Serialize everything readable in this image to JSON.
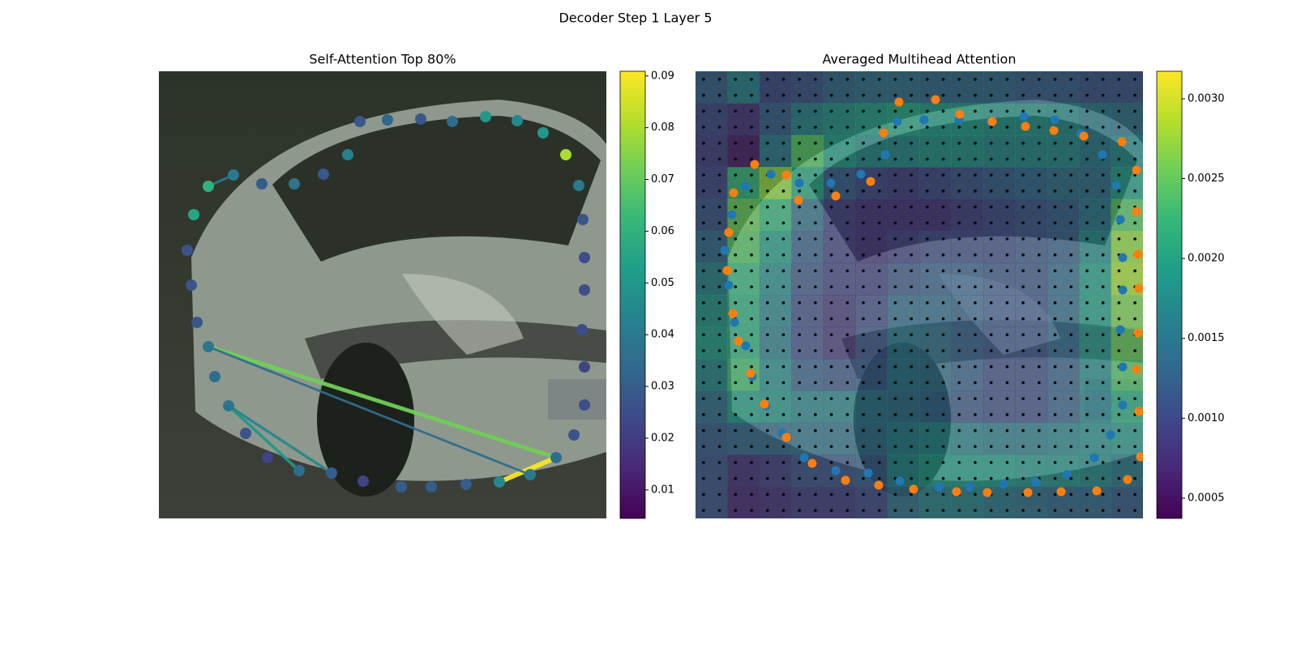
{
  "title": "Decoder Step 1 Layer 5",
  "chart_data": [
    {
      "type": "scatter",
      "title": "Self-Attention Top 80%",
      "colormap": "viridis",
      "xlim": [
        0,
        552
      ],
      "ylim": [
        552,
        0
      ],
      "x": [
        61,
        47,
        40,
        35,
        43,
        61,
        92,
        127,
        167,
        203,
        233,
        248,
        282,
        323,
        362,
        403,
        442,
        474,
        502,
        518,
        523,
        525,
        525,
        522,
        525,
        525,
        512,
        490,
        458,
        420,
        379,
        336,
        299,
        252,
        213,
        173,
        134,
        107,
        86,
        69
      ],
      "y": [
        212,
        242,
        288,
        331,
        375,
        410,
        424,
        413,
        413,
        425,
        449,
        490,
        492,
        493,
        490,
        496,
        491,
        476,
        449,
        411,
        369,
        322,
        282,
        233,
        187,
        140,
        103,
        75,
        54,
        45,
        42,
        39,
        39,
        46,
        56,
        59,
        75,
        105,
        139,
        175
      ],
      "values": [
        0.038,
        0.028,
        0.027,
        0.027,
        0.055,
        0.06,
        0.04,
        0.03,
        0.038,
        0.028,
        0.042,
        0.028,
        0.033,
        0.028,
        0.035,
        0.05,
        0.045,
        0.05,
        0.08,
        0.04,
        0.027,
        0.025,
        0.025,
        0.025,
        0.022,
        0.025,
        0.027,
        0.035,
        0.04,
        0.045,
        0.03,
        0.03,
        0.03,
        0.022,
        0.03,
        0.035,
        0.022,
        0.027,
        0.038,
        0.035
      ],
      "links": {
        "source": [
          29,
          0,
          38,
          38,
          5,
          0
        ],
        "target": [
          27,
          27,
          35,
          34,
          6,
          28
        ],
        "values": [
          0.09,
          0.072,
          0.05,
          0.045,
          0.04,
          0.035
        ]
      },
      "colorbar": {
        "clim": [
          0.0045,
          0.0909
        ],
        "ticks": [
          0.01,
          0.02,
          0.03,
          0.04,
          0.05,
          0.06,
          0.07,
          0.08,
          0.09
        ]
      }
    },
    {
      "type": "heatmap",
      "title": "Averaged Multihead Attention",
      "colormap": "viridis",
      "xlim": [
        0,
        552
      ],
      "ylim": [
        552,
        0
      ],
      "z": [
        [
          0.0012,
          0.0016,
          0.001,
          0.0011,
          0.0013,
          0.0014,
          0.0014,
          0.0013,
          0.0013,
          0.0013,
          0.0012,
          0.0012,
          0.0011,
          0.0011
        ],
        [
          0.001,
          0.0008,
          0.0012,
          0.0016,
          0.0018,
          0.0019,
          0.002,
          0.0019,
          0.0019,
          0.0018,
          0.0018,
          0.0017,
          0.0015,
          0.0014
        ],
        [
          0.0009,
          0.0006,
          0.0015,
          0.0024,
          0.0019,
          0.0017,
          0.0017,
          0.0018,
          0.0018,
          0.0017,
          0.0017,
          0.0017,
          0.0015,
          0.0017
        ],
        [
          0.001,
          0.0022,
          0.0027,
          0.002,
          0.0012,
          0.001,
          0.0009,
          0.001,
          0.0011,
          0.0012,
          0.0013,
          0.0014,
          0.0014,
          0.0019
        ],
        [
          0.0011,
          0.0025,
          0.0022,
          0.0014,
          0.0009,
          0.0008,
          0.0008,
          0.0008,
          0.0009,
          0.001,
          0.0011,
          0.0012,
          0.0015,
          0.0024
        ],
        [
          0.0013,
          0.0024,
          0.0019,
          0.0012,
          0.0009,
          0.0008,
          0.0009,
          0.001,
          0.001,
          0.001,
          0.0011,
          0.0012,
          0.0017,
          0.0027
        ],
        [
          0.0016,
          0.0022,
          0.0017,
          0.0011,
          0.0009,
          0.0009,
          0.0011,
          0.0012,
          0.0012,
          0.0011,
          0.0011,
          0.0013,
          0.0019,
          0.0028
        ],
        [
          0.0018,
          0.0021,
          0.0016,
          0.001,
          0.0008,
          0.001,
          0.0013,
          0.0013,
          0.0012,
          0.0011,
          0.0011,
          0.0013,
          0.0019,
          0.0026
        ],
        [
          0.0019,
          0.0021,
          0.0015,
          0.001,
          0.0008,
          0.0011,
          0.0015,
          0.0014,
          0.0012,
          0.0011,
          0.0011,
          0.0013,
          0.0018,
          0.0025
        ],
        [
          0.0017,
          0.0023,
          0.0017,
          0.0012,
          0.0011,
          0.0012,
          0.0015,
          0.0014,
          0.0012,
          0.001,
          0.001,
          0.0012,
          0.0017,
          0.0024
        ],
        [
          0.0014,
          0.0019,
          0.0018,
          0.0016,
          0.0016,
          0.0015,
          0.0014,
          0.0013,
          0.0011,
          0.001,
          0.001,
          0.0012,
          0.0016,
          0.0021
        ],
        [
          0.0012,
          0.0013,
          0.0013,
          0.0014,
          0.0014,
          0.0014,
          0.0016,
          0.0017,
          0.0016,
          0.0015,
          0.0015,
          0.0016,
          0.0017,
          0.0018
        ],
        [
          0.0011,
          0.0008,
          0.0009,
          0.0011,
          0.0011,
          0.0012,
          0.0017,
          0.0019,
          0.0019,
          0.0019,
          0.0018,
          0.0018,
          0.0017,
          0.0015
        ],
        [
          0.0011,
          0.0007,
          0.0008,
          0.0009,
          0.0009,
          0.001,
          0.0014,
          0.0016,
          0.0016,
          0.0015,
          0.0014,
          0.0013,
          0.0013,
          0.0012
        ]
      ],
      "series": [
        {
          "color": "#1f77b4",
          "x": [
            62,
            48,
            41,
            36,
            45,
            62,
            93,
            128,
            167,
            204,
            234,
            249,
            282,
            325,
            364,
            405,
            443,
            475,
            502,
            519,
            524,
            527,
            527,
            524,
            527,
            527,
            512,
            492,
            458,
            420,
            380,
            338,
            300,
            252,
            213,
            173,
            134,
            107,
            87,
            70
          ],
          "y": [
            213,
            242,
            288,
            331,
            375,
            410,
            425,
            414,
            414,
            425,
            449,
            490,
            492,
            492,
            490,
            496,
            492,
            475,
            449,
            411,
            369,
            322,
            282,
            233,
            187,
            140,
            103,
            75,
            54,
            45,
            42,
            39,
            39,
            46,
            56,
            59,
            75,
            105,
            139,
            175
          ]
        },
        {
          "color": "#ff7f0e",
          "x": [
            46,
            39,
            41,
            47,
            73,
            112,
            127,
            173,
            216,
            232,
            251,
            296,
            326,
            366,
            407,
            442,
            479,
            526,
            544,
            544,
            546,
            547,
            546,
            544,
            547,
            549,
            533,
            495,
            451,
            410,
            360,
            322,
            269,
            226,
            185,
            144,
            112,
            85,
            68,
            53
          ],
          "y": [
            253,
            306,
            353,
            402,
            437,
            424,
            393,
            398,
            416,
            476,
            514,
            517,
            499,
            490,
            484,
            479,
            472,
            465,
            430,
            379,
            326,
            284,
            229,
            184,
            132,
            76,
            48,
            34,
            33,
            32,
            32,
            33,
            36,
            41,
            47,
            68,
            100,
            141,
            179,
            219
          ]
        }
      ],
      "colorbar": {
        "clim": [
          0.000373,
          0.003172
        ],
        "ticks": [
          0.0005,
          {
            "value": 0.001,
            "label": "0.0010"
          },
          0.0015,
          {
            "value": 0.002,
            "label": "0.0020"
          },
          0.0025,
          {
            "value": 0.003,
            "label": "0.0030"
          }
        ]
      }
    }
  ]
}
